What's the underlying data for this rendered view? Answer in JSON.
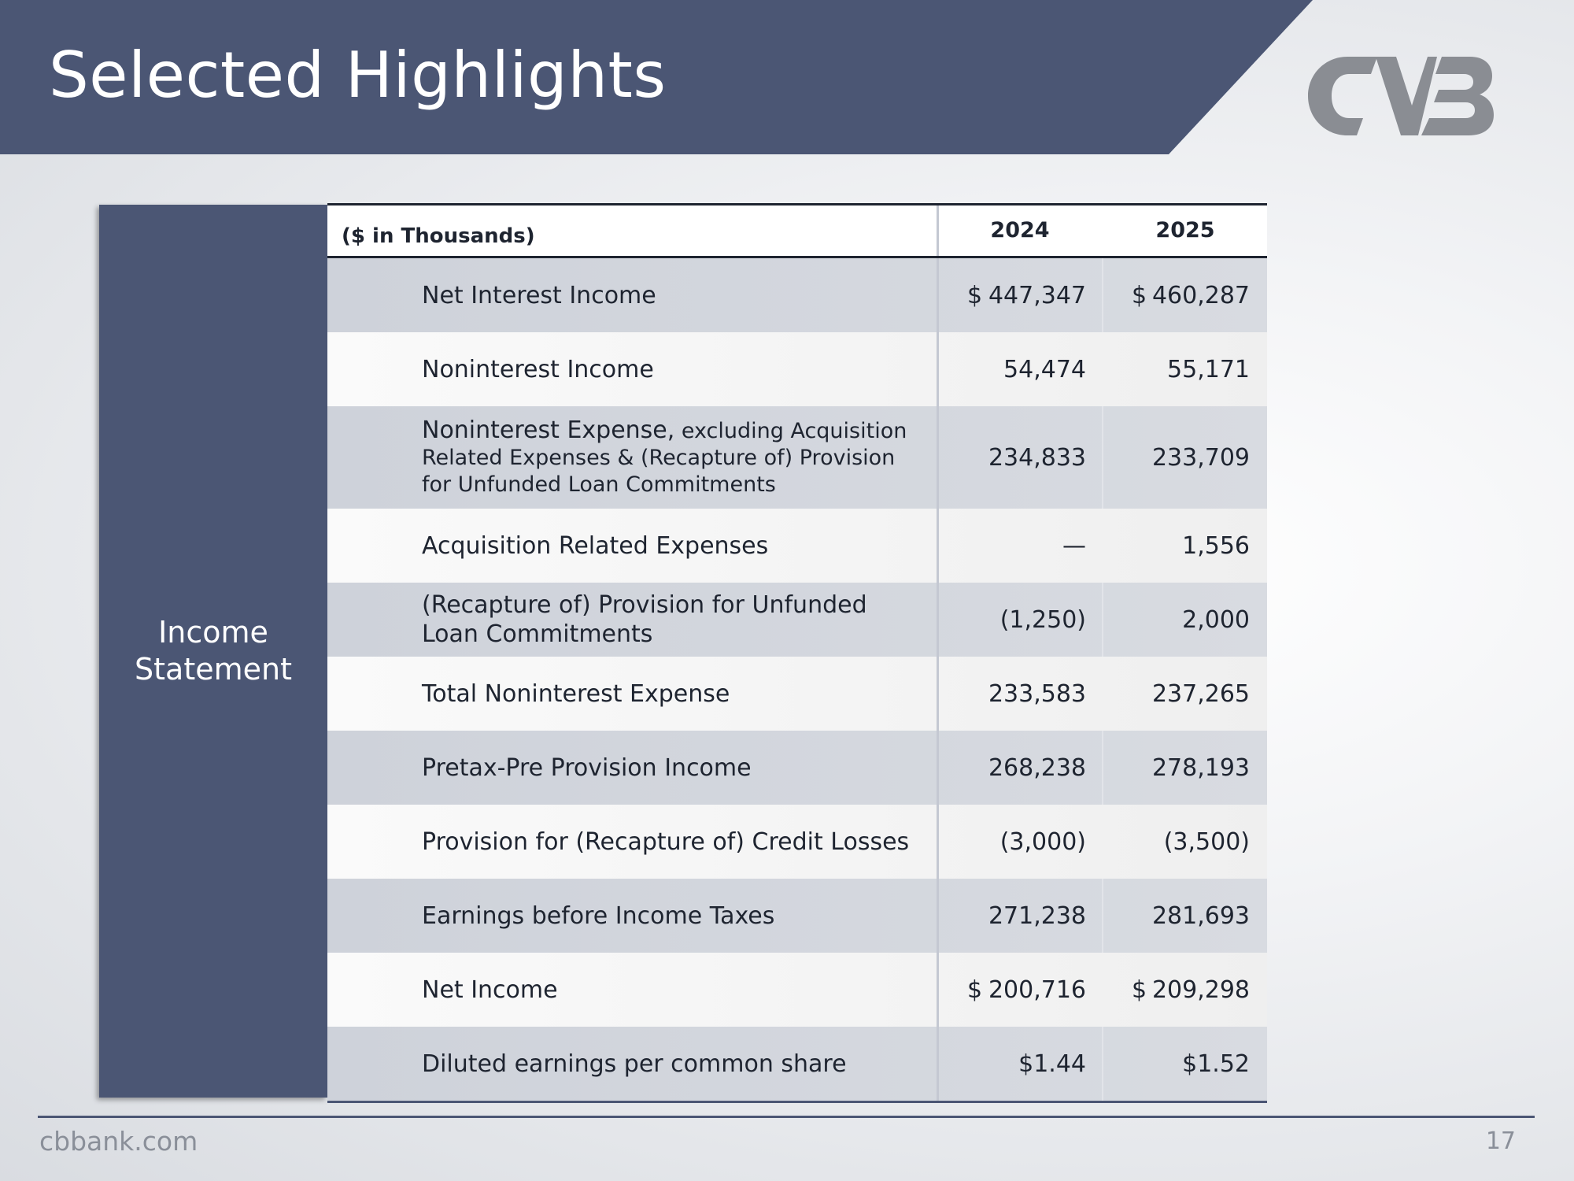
{
  "slide": {
    "title": "Selected Highlights",
    "section_label": "Income\nStatement",
    "footer_site": "cbbank.com",
    "page_number": "17"
  },
  "colors": {
    "banner": "#4b5674",
    "logo": "#8a8d93"
  },
  "logo": {
    "icon": "cvb-logo-icon"
  },
  "table": {
    "unit_header": "($ in Thousands)",
    "years": [
      "2024",
      "2025"
    ],
    "rows": [
      {
        "label": "Net Interest Income",
        "v2024_prefix": "$",
        "v2024": "447,347",
        "v2025_prefix": "$",
        "v2025": "460,287"
      },
      {
        "label": "Noninterest Income",
        "v2024_prefix": "",
        "v2024": "54,474",
        "v2025_prefix": "",
        "v2025": "55,171"
      },
      {
        "label_lead": "Noninterest Expense,",
        "label_rest": " excluding Acquisition Related Expenses & (Recapture of) Provision for Unfunded Loan Commitments",
        "v2024_prefix": "",
        "v2024": "234,833",
        "v2025_prefix": "",
        "v2025": "233,709"
      },
      {
        "label": "Acquisition Related Expenses",
        "v2024_prefix": "",
        "v2024": "—",
        "v2025_prefix": "",
        "v2025": "1,556"
      },
      {
        "label": "(Recapture of) Provision for Unfunded Loan Commitments",
        "v2024_prefix": "",
        "v2024": "(1,250)",
        "v2025_prefix": "",
        "v2025": "2,000"
      },
      {
        "label": "Total Noninterest Expense",
        "v2024_prefix": "",
        "v2024": "233,583",
        "v2025_prefix": "",
        "v2025": "237,265"
      },
      {
        "label": "Pretax-Pre Provision Income",
        "v2024_prefix": "",
        "v2024": "268,238",
        "v2025_prefix": "",
        "v2025": "278,193"
      },
      {
        "label": "Provision for (Recapture of) Credit Losses",
        "v2024_prefix": "",
        "v2024": "(3,000)",
        "v2025_prefix": "",
        "v2025": "(3,500)"
      },
      {
        "label": "Earnings before Income Taxes",
        "v2024_prefix": "",
        "v2024": "271,238",
        "v2025_prefix": "",
        "v2025": "281,693"
      },
      {
        "label": "Net Income",
        "v2024_prefix": "$",
        "v2024": "200,716",
        "v2025_prefix": "$",
        "v2025": "209,298"
      },
      {
        "label": "Diluted earnings per common share",
        "v2024_prefix": "",
        "v2024": "$1.44",
        "v2025_prefix": "",
        "v2025": "$1.52"
      }
    ]
  }
}
